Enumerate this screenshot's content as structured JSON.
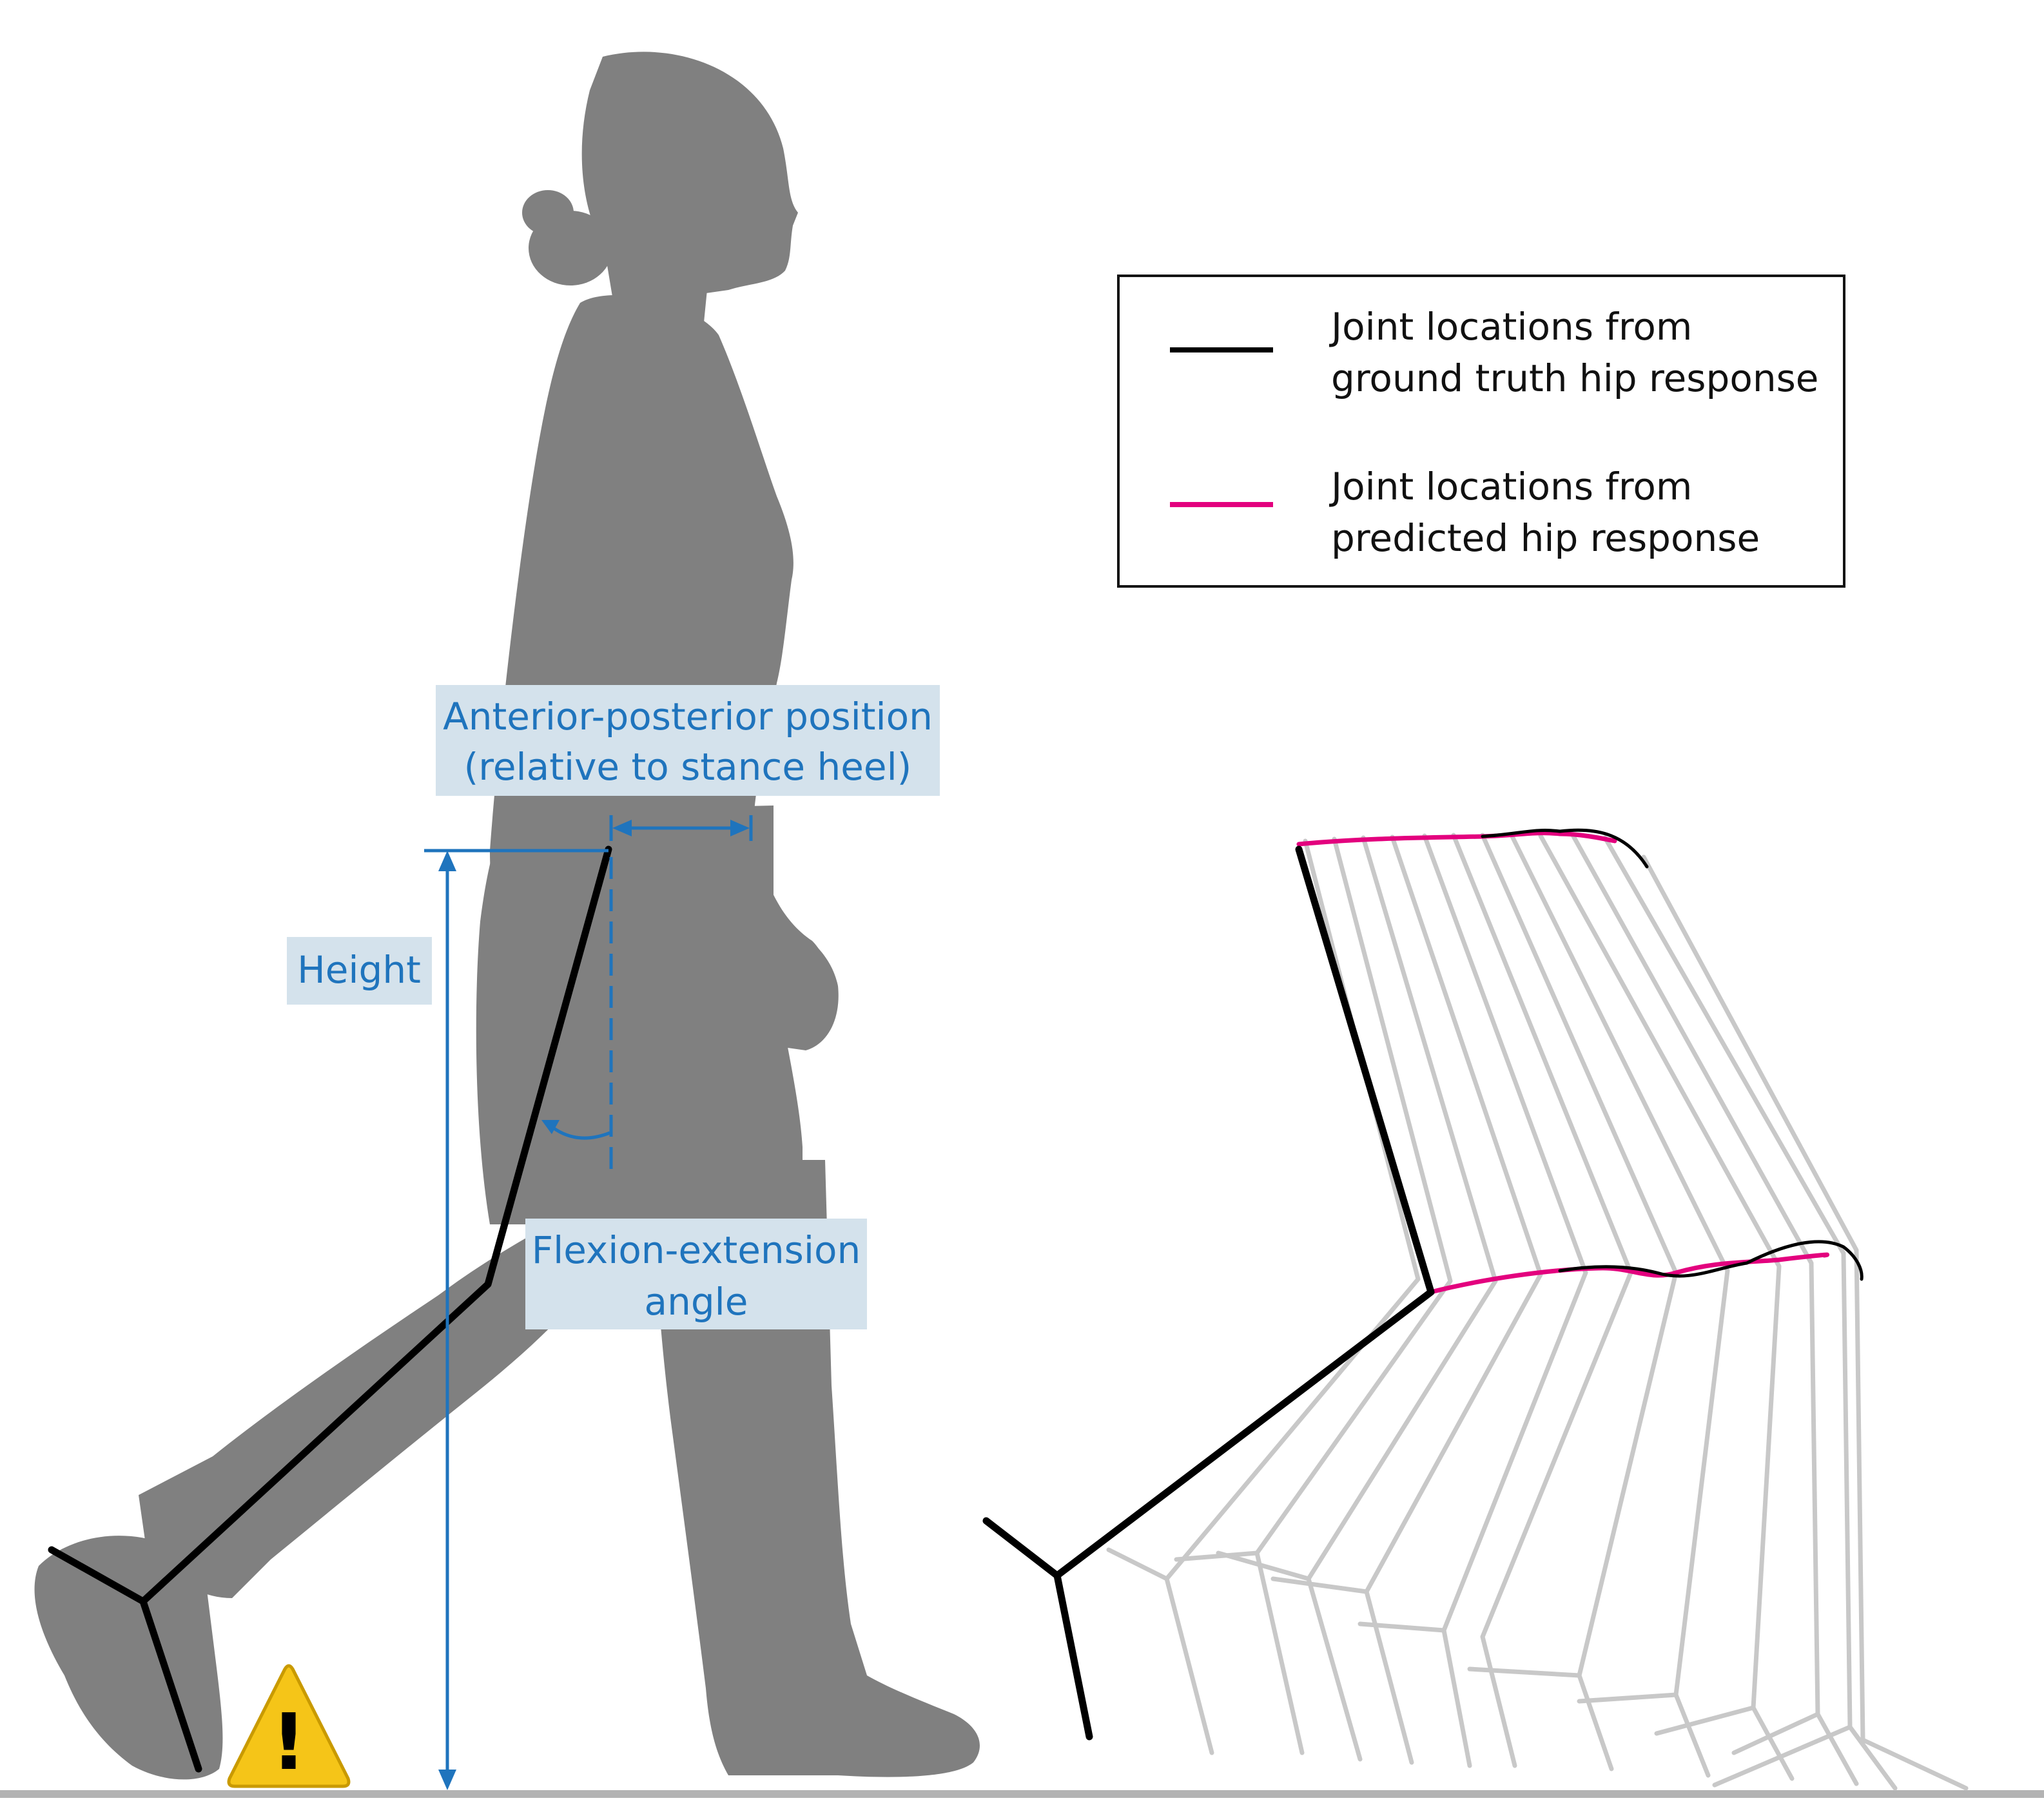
{
  "annotations": {
    "ap_line1": "Anterior-posterior position",
    "ap_line2": "(relative to stance heel)",
    "height": "Height",
    "flex_line1": "Flexion-extension",
    "flex_line2": "angle"
  },
  "legend": {
    "ground_truth_line1": "Joint locations from",
    "ground_truth_line2": "ground truth hip response",
    "predicted_line1": "Joint locations from",
    "predicted_line2": "predicted hip response"
  },
  "warning": {
    "symbol": "!"
  },
  "colors": {
    "silhouette": "#808080",
    "annotation": "#1f74bd",
    "label_bg": "#d4e2ec",
    "ground_truth": "#000000",
    "predicted": "#e3007e",
    "trail": "#c8c8c8",
    "floor": "#b3b3b3",
    "warning_fill": "#f5c518"
  },
  "icons": [
    "walking-person-silhouette",
    "warning-triangle-icon"
  ]
}
